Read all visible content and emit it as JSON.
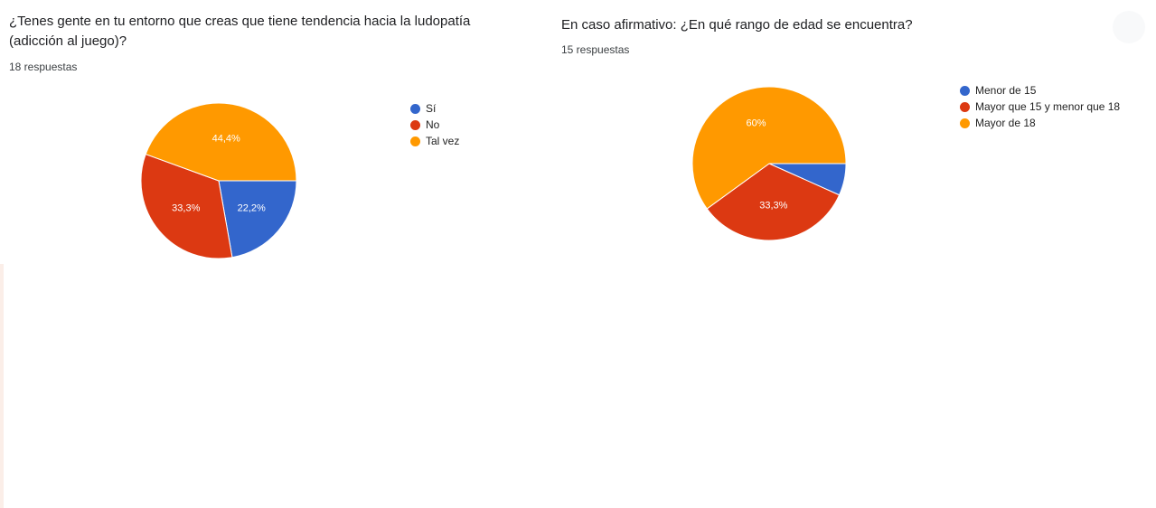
{
  "colors": {
    "blue": "#3366cc",
    "red": "#dc3912",
    "orange": "#ff9900"
  },
  "questions": [
    {
      "title": "¿Tenes gente en tu entorno que creas que tiene tendencia hacia la ludopatía (adicción al juego)?",
      "responses": "18 respuestas"
    },
    {
      "title": "En caso afirmativo: ¿En qué rango de edad se encuentra?",
      "responses": "15 respuestas"
    }
  ],
  "chart_data": [
    {
      "type": "pie",
      "title": "¿Tenes gente en tu entorno que creas que tiene tendencia hacia la ludopatía (adicción al juego)?",
      "legend_position": "right",
      "slices": [
        {
          "label": "Sí",
          "value": 22.2,
          "display": "22,2%",
          "color": "#3366cc"
        },
        {
          "label": "No",
          "value": 33.3,
          "display": "33,3%",
          "color": "#dc3912"
        },
        {
          "label": "Tal vez",
          "value": 44.4,
          "display": "44,4%",
          "color": "#ff9900"
        }
      ]
    },
    {
      "type": "pie",
      "title": "En caso afirmativo: ¿En qué rango de edad se encuentra?",
      "legend_position": "right",
      "slices": [
        {
          "label": "Menor de 15",
          "value": 6.7,
          "display": "",
          "color": "#3366cc"
        },
        {
          "label": "Mayor que 15 y menor que 18",
          "value": 33.3,
          "display": "33,3%",
          "color": "#dc3912"
        },
        {
          "label": "Mayor de 18",
          "value": 60,
          "display": "60%",
          "color": "#ff9900"
        }
      ]
    }
  ]
}
